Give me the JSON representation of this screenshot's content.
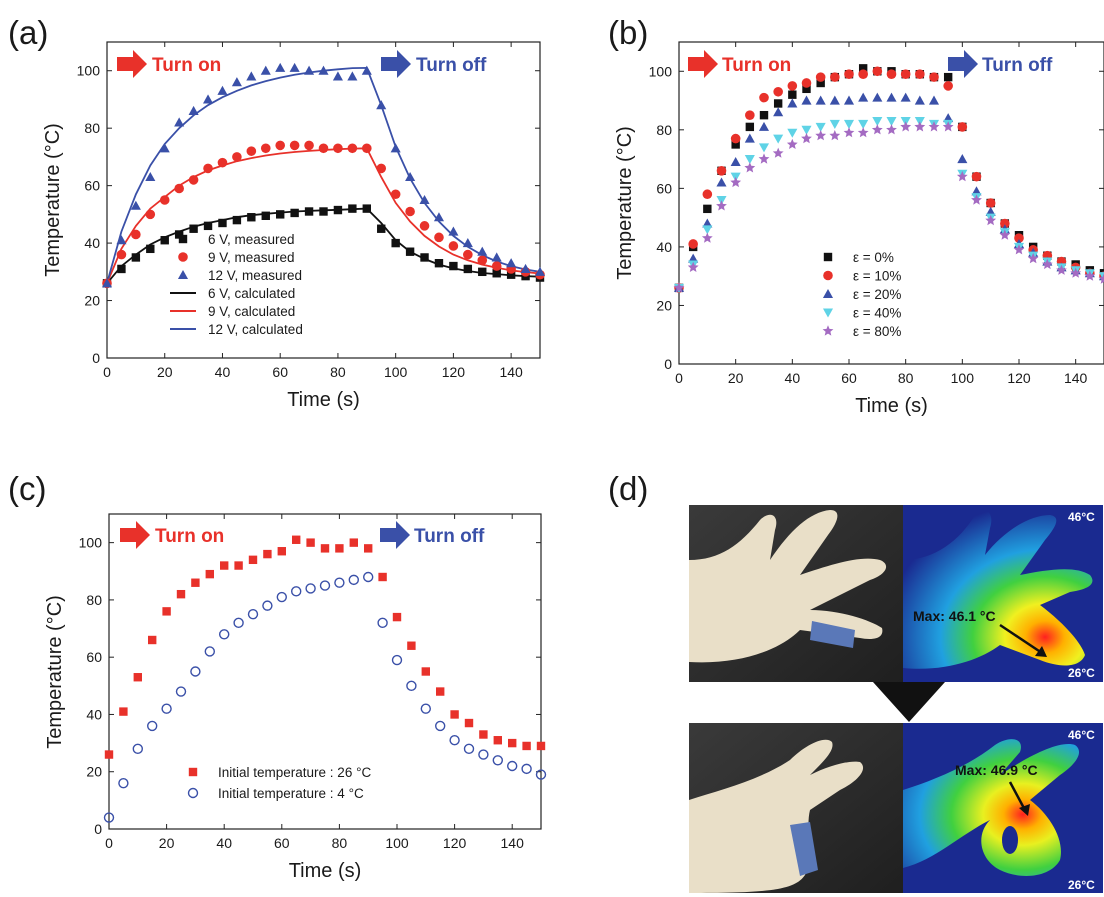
{
  "panels": {
    "a": "(a)",
    "b": "(b)",
    "c": "(c)",
    "d": "(d)"
  },
  "annotations": {
    "turn_on": "Turn on",
    "turn_off": "Turn off"
  },
  "colors": {
    "red": "#e8312a",
    "blue": "#3a50a8",
    "black": "#111111",
    "cyan": "#5fd3e6",
    "purple": "#a46bc2"
  },
  "chart_data": [
    {
      "id": "a",
      "type": "scatter",
      "xlabel": "Time (s)",
      "ylabel": "Temperature (°C)",
      "xlim": [
        0,
        150
      ],
      "ylim": [
        0,
        110
      ],
      "xticks": [
        0,
        20,
        40,
        60,
        80,
        100,
        120,
        140
      ],
      "yticks": [
        0,
        20,
        40,
        60,
        80,
        100
      ],
      "legend_position": "bottom-center",
      "series": [
        {
          "name": "6 V, measured",
          "marker": "square",
          "color": "#111111",
          "x": [
            0,
            5,
            10,
            15,
            20,
            25,
            30,
            35,
            40,
            45,
            50,
            55,
            60,
            65,
            70,
            75,
            80,
            85,
            90,
            95,
            100,
            105,
            110,
            115,
            120,
            125,
            130,
            135,
            140,
            145,
            150
          ],
          "y": [
            26,
            31,
            35,
            38,
            41,
            43,
            45,
            46,
            47,
            48,
            49,
            49.5,
            50,
            50.5,
            51,
            51,
            51.5,
            52,
            52,
            45,
            40,
            37,
            35,
            33,
            32,
            31,
            30,
            29.5,
            29,
            28.5,
            28
          ]
        },
        {
          "name": "9 V, measured",
          "marker": "circle",
          "color": "#e8312a",
          "x": [
            0,
            5,
            10,
            15,
            20,
            25,
            30,
            35,
            40,
            45,
            50,
            55,
            60,
            65,
            70,
            75,
            80,
            85,
            90,
            95,
            100,
            105,
            110,
            115,
            120,
            125,
            130,
            135,
            140,
            145,
            150
          ],
          "y": [
            26,
            36,
            43,
            50,
            55,
            59,
            62,
            66,
            68,
            70,
            72,
            73,
            74,
            74,
            74,
            73,
            73,
            73,
            73,
            66,
            57,
            51,
            46,
            42,
            39,
            36,
            34,
            32,
            31,
            30,
            29
          ]
        },
        {
          "name": "12 V, measured",
          "marker": "triangle",
          "color": "#3a50a8",
          "x": [
            0,
            5,
            10,
            15,
            20,
            25,
            30,
            35,
            40,
            45,
            50,
            55,
            60,
            65,
            70,
            75,
            80,
            85,
            90,
            95,
            100,
            105,
            110,
            115,
            120,
            125,
            130,
            135,
            140,
            145,
            150
          ],
          "y": [
            26,
            41,
            53,
            63,
            73,
            82,
            86,
            90,
            93,
            96,
            98,
            100,
            101,
            101,
            100,
            100,
            98,
            98,
            100,
            88,
            73,
            63,
            55,
            49,
            44,
            40,
            37,
            35,
            33,
            31,
            30
          ]
        },
        {
          "name": "6 V, calculated",
          "line": true,
          "color": "#111111",
          "x": [
            0,
            5,
            10,
            15,
            20,
            25,
            30,
            35,
            40,
            45,
            50,
            55,
            60,
            65,
            70,
            75,
            80,
            85,
            90,
            95,
            100,
            105,
            110,
            115,
            120,
            125,
            130,
            135,
            140,
            145,
            150
          ],
          "y": [
            26,
            32,
            36,
            39.5,
            42,
            44,
            45.7,
            47,
            48,
            49,
            49.7,
            50.2,
            50.6,
            51,
            51.2,
            51.4,
            51.6,
            51.8,
            52,
            47,
            41,
            37,
            34.5,
            32.5,
            31.2,
            30.3,
            29.6,
            29.2,
            28.8,
            28.5,
            28.3
          ]
        },
        {
          "name": "9 V, calculated",
          "line": true,
          "color": "#e8312a",
          "x": [
            0,
            5,
            10,
            15,
            20,
            25,
            30,
            35,
            40,
            45,
            50,
            55,
            60,
            65,
            70,
            75,
            80,
            85,
            90,
            95,
            100,
            105,
            110,
            115,
            120,
            125,
            130,
            135,
            140,
            145,
            150
          ],
          "y": [
            26,
            38,
            46,
            52,
            56,
            60,
            63,
            65.3,
            67,
            68.5,
            69.6,
            70.5,
            71.2,
            71.7,
            72.1,
            72.4,
            72.7,
            72.9,
            73,
            63,
            54,
            47.5,
            42.5,
            38.8,
            36,
            34,
            32.5,
            31.4,
            30.5,
            29.9,
            29.4
          ]
        },
        {
          "name": "12 V, calculated",
          "line": true,
          "color": "#3a50a8",
          "x": [
            0,
            5,
            10,
            15,
            20,
            25,
            30,
            35,
            40,
            45,
            50,
            55,
            60,
            65,
            70,
            75,
            80,
            85,
            90,
            95,
            100,
            105,
            110,
            115,
            120,
            125,
            130,
            135,
            140,
            145,
            150
          ],
          "y": [
            26,
            44,
            57,
            67,
            74.5,
            80,
            84.5,
            88,
            90.8,
            93,
            94.9,
            96.4,
            97.6,
            98.6,
            99.4,
            100,
            100.5,
            100.9,
            101,
            88,
            73.5,
            62.5,
            54,
            47.5,
            42.5,
            38.7,
            35.8,
            33.6,
            32,
            30.8,
            30
          ]
        }
      ]
    },
    {
      "id": "b",
      "type": "scatter",
      "xlabel": "Time (s)",
      "ylabel": "Temperature (°C)",
      "xlim": [
        0,
        150
      ],
      "ylim": [
        0,
        110
      ],
      "xticks": [
        0,
        20,
        40,
        60,
        80,
        100,
        120,
        140
      ],
      "yticks": [
        0,
        20,
        40,
        60,
        80,
        100
      ],
      "legend_position": "bottom-center",
      "series": [
        {
          "name": "ε = 0%",
          "marker": "square",
          "color": "#111111",
          "x": [
            0,
            5,
            10,
            15,
            20,
            25,
            30,
            35,
            40,
            45,
            50,
            55,
            60,
            65,
            70,
            75,
            80,
            85,
            90,
            95,
            100,
            105,
            110,
            115,
            120,
            125,
            130,
            135,
            140,
            145,
            150
          ],
          "y": [
            26,
            40,
            53,
            66,
            75,
            81,
            85,
            89,
            92,
            94,
            96,
            98,
            99,
            101,
            100,
            100,
            99,
            99,
            98,
            98,
            81,
            64,
            55,
            48,
            44,
            40,
            37,
            35,
            34,
            32,
            31
          ]
        },
        {
          "name": "ε = 10%",
          "marker": "circle",
          "color": "#e8312a",
          "x": [
            0,
            5,
            10,
            15,
            20,
            25,
            30,
            35,
            40,
            45,
            50,
            55,
            60,
            65,
            70,
            75,
            80,
            85,
            90,
            95,
            100,
            105,
            110,
            115,
            120,
            125,
            130,
            135,
            140,
            145,
            150
          ],
          "y": [
            26,
            41,
            58,
            66,
            77,
            85,
            91,
            93,
            95,
            96,
            98,
            98,
            99,
            99,
            100,
            99,
            99,
            99,
            98,
            95,
            81,
            64,
            55,
            48,
            43,
            39,
            37,
            35,
            33,
            31,
            30
          ]
        },
        {
          "name": "ε = 20%",
          "marker": "triangle",
          "color": "#3a50a8",
          "x": [
            0,
            5,
            10,
            15,
            20,
            25,
            30,
            35,
            40,
            45,
            50,
            55,
            60,
            65,
            70,
            75,
            80,
            85,
            90,
            95,
            100,
            105,
            110,
            115,
            120,
            125,
            130,
            135,
            140,
            145,
            150
          ],
          "y": [
            26,
            36,
            48,
            62,
            69,
            77,
            81,
            86,
            89,
            90,
            90,
            90,
            90,
            91,
            91,
            91,
            91,
            90,
            90,
            84,
            70,
            59,
            52,
            46,
            41,
            38,
            35,
            33,
            32,
            31,
            30
          ]
        },
        {
          "name": "ε = 40%",
          "marker": "triangle-down",
          "color": "#5fd3e6",
          "x": [
            0,
            5,
            10,
            15,
            20,
            25,
            30,
            35,
            40,
            45,
            50,
            55,
            60,
            65,
            70,
            75,
            80,
            85,
            90,
            95,
            100,
            105,
            110,
            115,
            120,
            125,
            130,
            135,
            140,
            145,
            150
          ],
          "y": [
            26,
            34,
            46,
            56,
            64,
            70,
            74,
            77,
            79,
            80,
            81,
            82,
            82,
            82,
            83,
            83,
            83,
            83,
            82,
            82,
            65,
            57,
            50,
            45,
            40,
            37,
            35,
            33,
            32,
            31,
            30
          ]
        },
        {
          "name": "ε = 80%",
          "marker": "star",
          "color": "#a46bc2",
          "x": [
            0,
            5,
            10,
            15,
            20,
            25,
            30,
            35,
            40,
            45,
            50,
            55,
            60,
            65,
            70,
            75,
            80,
            85,
            90,
            95,
            100,
            105,
            110,
            115,
            120,
            125,
            130,
            135,
            140,
            145,
            150
          ],
          "y": [
            26,
            33,
            43,
            54,
            62,
            67,
            70,
            72,
            75,
            77,
            78,
            78,
            79,
            79,
            80,
            80,
            81,
            81,
            81,
            81,
            64,
            56,
            49,
            44,
            39,
            36,
            34,
            32,
            31,
            30,
            29
          ]
        }
      ]
    },
    {
      "id": "c",
      "type": "scatter",
      "xlabel": "Time (s)",
      "ylabel": "Temperature (°C)",
      "xlim": [
        0,
        150
      ],
      "ylim": [
        0,
        110
      ],
      "xticks": [
        0,
        20,
        40,
        60,
        80,
        100,
        120,
        140
      ],
      "yticks": [
        0,
        20,
        40,
        60,
        80,
        100
      ],
      "legend_position": "bottom-center",
      "series": [
        {
          "name": "Initial temperature : 26 °C",
          "marker": "square",
          "color": "#e8312a",
          "x": [
            0,
            5,
            10,
            15,
            20,
            25,
            30,
            35,
            40,
            45,
            50,
            55,
            60,
            65,
            70,
            75,
            80,
            85,
            90,
            95,
            100,
            105,
            110,
            115,
            120,
            125,
            130,
            135,
            140,
            145,
            150
          ],
          "y": [
            26,
            41,
            53,
            66,
            76,
            82,
            86,
            89,
            92,
            92,
            94,
            96,
            97,
            101,
            100,
            98,
            98,
            100,
            98,
            88,
            74,
            64,
            55,
            48,
            40,
            37,
            33,
            31,
            30,
            29,
            29
          ]
        },
        {
          "name": "Initial temperature : 4 °C",
          "marker": "circle-open",
          "color": "#3a50a8",
          "x": [
            0,
            5,
            10,
            15,
            20,
            25,
            30,
            35,
            40,
            45,
            50,
            55,
            60,
            65,
            70,
            75,
            80,
            85,
            90,
            95,
            100,
            105,
            110,
            115,
            120,
            125,
            130,
            135,
            140,
            145,
            150
          ],
          "y": [
            4,
            16,
            28,
            36,
            42,
            48,
            55,
            62,
            68,
            72,
            75,
            78,
            81,
            83,
            84,
            85,
            86,
            87,
            88,
            72,
            59,
            50,
            42,
            36,
            31,
            28,
            26,
            24,
            22,
            21,
            19
          ]
        }
      ]
    }
  ],
  "photo": {
    "labels_top": {
      "max": "46°C",
      "min": "26°C",
      "reading": "Max: 46.1 °C"
    },
    "labels_bottom": {
      "max": "46°C",
      "min": "26°C",
      "reading": "Max: 46.9 °C"
    }
  }
}
